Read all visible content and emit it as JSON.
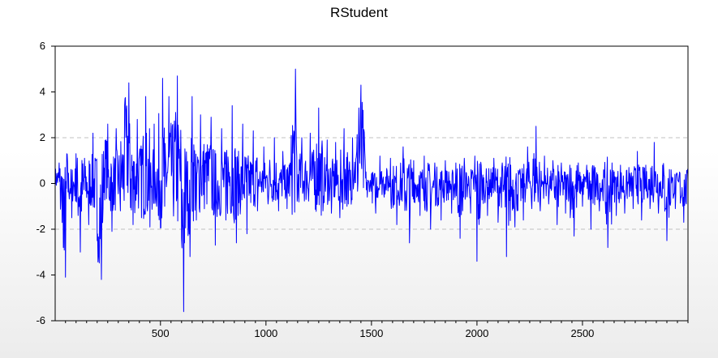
{
  "chart_data": {
    "type": "line",
    "title": "RStudent",
    "xlabel": "",
    "ylabel": "",
    "xlim": [
      1,
      3000
    ],
    "ylim": [
      -6,
      6
    ],
    "x_ticks": [
      500,
      1000,
      1500,
      2000,
      2500
    ],
    "y_ticks": [
      -6,
      -4,
      -2,
      0,
      2,
      4,
      6
    ],
    "reference_lines": [
      2,
      -2
    ],
    "grid": false,
    "legend": "none",
    "series_color": "#0000ff",
    "reference_line_color": "#c0c0c0",
    "series": [
      {
        "points": [
          [
            1,
            0.3
          ],
          [
            20,
            0.9
          ],
          [
            40,
            -2.8
          ],
          [
            50,
            -4.1
          ],
          [
            60,
            0.9
          ],
          [
            80,
            -1.5
          ],
          [
            100,
            1.3
          ],
          [
            120,
            -3.0
          ],
          [
            140,
            1.1
          ],
          [
            160,
            -1.8
          ],
          [
            180,
            2.2
          ],
          [
            200,
            -2.5
          ],
          [
            220,
            -4.2
          ],
          [
            230,
            1.4
          ],
          [
            250,
            2.6
          ],
          [
            270,
            -2.1
          ],
          [
            290,
            2.4
          ],
          [
            310,
            -1.2
          ],
          [
            330,
            3.4
          ],
          [
            350,
            4.4
          ],
          [
            370,
            -1.8
          ],
          [
            390,
            2.8
          ],
          [
            410,
            -1.5
          ],
          [
            430,
            3.8
          ],
          [
            450,
            -1.9
          ],
          [
            470,
            2.6
          ],
          [
            490,
            -1.4
          ],
          [
            510,
            4.6
          ],
          [
            520,
            -1.0
          ],
          [
            540,
            3.8
          ],
          [
            560,
            -0.4
          ],
          [
            580,
            4.7
          ],
          [
            600,
            -2.4
          ],
          [
            610,
            -5.6
          ],
          [
            625,
            0.2
          ],
          [
            640,
            -3.2
          ],
          [
            650,
            3.8
          ],
          [
            670,
            -1.6
          ],
          [
            690,
            3.0
          ],
          [
            720,
            -0.9
          ],
          [
            740,
            2.9
          ],
          [
            760,
            -2.7
          ],
          [
            790,
            2.4
          ],
          [
            810,
            -1.6
          ],
          [
            840,
            3.4
          ],
          [
            860,
            -2.6
          ],
          [
            890,
            2.6
          ],
          [
            910,
            -2.2
          ],
          [
            940,
            2.3
          ],
          [
            960,
            -1.2
          ],
          [
            990,
            1.6
          ],
          [
            1010,
            -0.9
          ],
          [
            1040,
            2.0
          ],
          [
            1060,
            -1.2
          ],
          [
            1080,
            1.4
          ],
          [
            1100,
            -1.1
          ],
          [
            1120,
            2.1
          ],
          [
            1140,
            5.0
          ],
          [
            1150,
            -0.6
          ],
          [
            1170,
            2.0
          ],
          [
            1190,
            -0.7
          ],
          [
            1210,
            2.2
          ],
          [
            1230,
            -0.5
          ],
          [
            1250,
            3.3
          ],
          [
            1270,
            -1.2
          ],
          [
            1290,
            1.9
          ],
          [
            1310,
            -1.3
          ],
          [
            1330,
            1.8
          ],
          [
            1350,
            -1.5
          ],
          [
            1370,
            2.4
          ],
          [
            1390,
            -0.9
          ],
          [
            1410,
            2.0
          ],
          [
            1430,
            1.4
          ],
          [
            1440,
            3.3
          ],
          [
            1450,
            4.3
          ],
          [
            1460,
            3.2
          ],
          [
            1470,
            1.0
          ],
          [
            1480,
            -0.6
          ],
          [
            1500,
            0.4
          ],
          [
            1520,
            -1.3
          ],
          [
            1540,
            1.2
          ],
          [
            1560,
            -0.6
          ],
          [
            1590,
            1.1
          ],
          [
            1620,
            -1.8
          ],
          [
            1650,
            1.6
          ],
          [
            1680,
            -2.6
          ],
          [
            1700,
            1.0
          ],
          [
            1730,
            -1.4
          ],
          [
            1750,
            1.2
          ],
          [
            1780,
            -2.0
          ],
          [
            1800,
            0.9
          ],
          [
            1830,
            -1.6
          ],
          [
            1850,
            1.0
          ],
          [
            1880,
            -1.3
          ],
          [
            1900,
            0.9
          ],
          [
            1920,
            -2.4
          ],
          [
            1940,
            1.1
          ],
          [
            1970,
            -1.3
          ],
          [
            1990,
            1.2
          ],
          [
            2000,
            -3.4
          ],
          [
            2020,
            0.8
          ],
          [
            2050,
            -1.4
          ],
          [
            2080,
            1.1
          ],
          [
            2100,
            -1.7
          ],
          [
            2120,
            0.9
          ],
          [
            2140,
            -3.2
          ],
          [
            2160,
            0.8
          ],
          [
            2180,
            -1.9
          ],
          [
            2200,
            0.4
          ],
          [
            2220,
            -1.6
          ],
          [
            2240,
            1.6
          ],
          [
            2260,
            -1.1
          ],
          [
            2280,
            2.5
          ],
          [
            2300,
            -1.2
          ],
          [
            2320,
            1.2
          ],
          [
            2340,
            -0.9
          ],
          [
            2360,
            1.0
          ],
          [
            2380,
            -1.8
          ],
          [
            2400,
            0.9
          ],
          [
            2420,
            -1.3
          ],
          [
            2440,
            0.8
          ],
          [
            2460,
            -2.3
          ],
          [
            2480,
            0.9
          ],
          [
            2500,
            -1.0
          ],
          [
            2520,
            0.8
          ],
          [
            2540,
            -2.0
          ],
          [
            2560,
            0.7
          ],
          [
            2580,
            -1.2
          ],
          [
            2600,
            0.6
          ],
          [
            2620,
            -2.8
          ],
          [
            2640,
            0.9
          ],
          [
            2660,
            -1.4
          ],
          [
            2680,
            0.8
          ],
          [
            2700,
            -1.3
          ],
          [
            2720,
            0.7
          ],
          [
            2740,
            -1.1
          ],
          [
            2760,
            1.4
          ],
          [
            2780,
            -1.6
          ],
          [
            2800,
            0.8
          ],
          [
            2820,
            -1.1
          ],
          [
            2840,
            1.8
          ],
          [
            2860,
            -1.3
          ],
          [
            2880,
            0.8
          ],
          [
            2900,
            -2.5
          ],
          [
            2920,
            0.6
          ],
          [
            2940,
            -1.1
          ],
          [
            2960,
            0.5
          ],
          [
            2980,
            -1.7
          ],
          [
            3000,
            0.1
          ]
        ]
      }
    ]
  }
}
